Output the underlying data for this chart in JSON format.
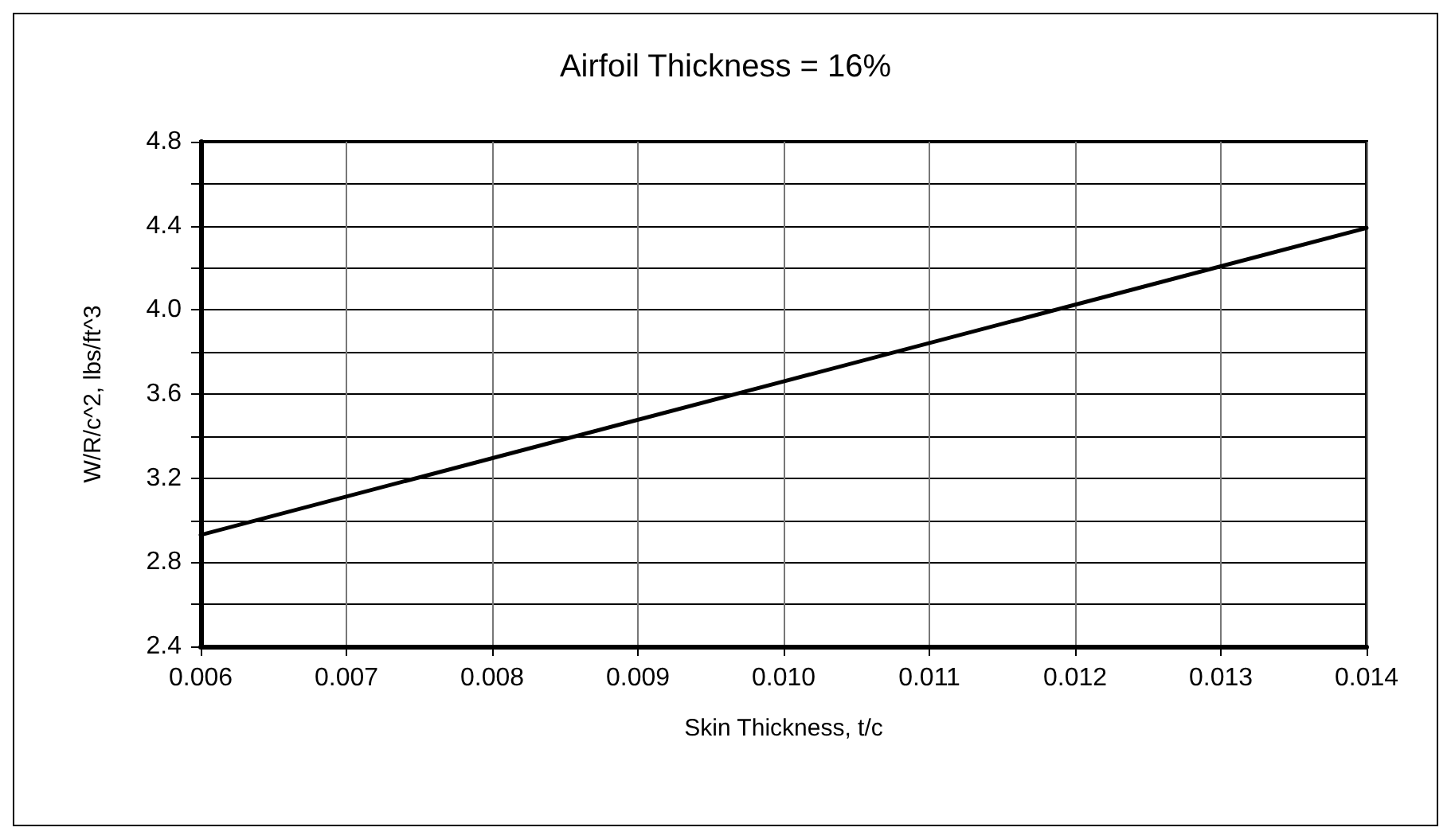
{
  "chart_data": {
    "type": "line",
    "title": "Airfoil Thickness = 16%",
    "xlabel": "Skin Thickness, t/c",
    "ylabel": "W/R/c^2, lbs/ft^3",
    "x": [
      0.006,
      0.01,
      0.014
    ],
    "series": [
      {
        "color": "#000000",
        "values": [
          2.93,
          3.66,
          4.39
        ]
      }
    ],
    "xlim": [
      0.006,
      0.014
    ],
    "xticks": [
      {
        "value": 0.006,
        "label": "0.006"
      },
      {
        "value": 0.007,
        "label": "0.007"
      },
      {
        "value": 0.008,
        "label": "0.008"
      },
      {
        "value": 0.009,
        "label": "0.009"
      },
      {
        "value": 0.01,
        "label": "0.010"
      },
      {
        "value": 0.011,
        "label": "0.011"
      },
      {
        "value": 0.012,
        "label": "0.012"
      },
      {
        "value": 0.013,
        "label": "0.013"
      },
      {
        "value": 0.014,
        "label": "0.014"
      }
    ],
    "ylim": [
      2.4,
      4.8
    ],
    "yticks": [
      {
        "value": 2.4,
        "label": "2.4"
      },
      {
        "value": 2.6,
        "label": null
      },
      {
        "value": 2.8,
        "label": "2.8"
      },
      {
        "value": 3.0,
        "label": null
      },
      {
        "value": 3.2,
        "label": "3.2"
      },
      {
        "value": 3.4,
        "label": null
      },
      {
        "value": 3.6,
        "label": "3.6"
      },
      {
        "value": 3.8,
        "label": null
      },
      {
        "value": 4.0,
        "label": "4.0"
      },
      {
        "value": 4.2,
        "label": null
      },
      {
        "value": 4.4,
        "label": "4.4"
      },
      {
        "value": 4.6,
        "label": null
      },
      {
        "value": 4.8,
        "label": "4.8"
      }
    ],
    "grid": true,
    "marker": "none",
    "line_style": "solid"
  }
}
